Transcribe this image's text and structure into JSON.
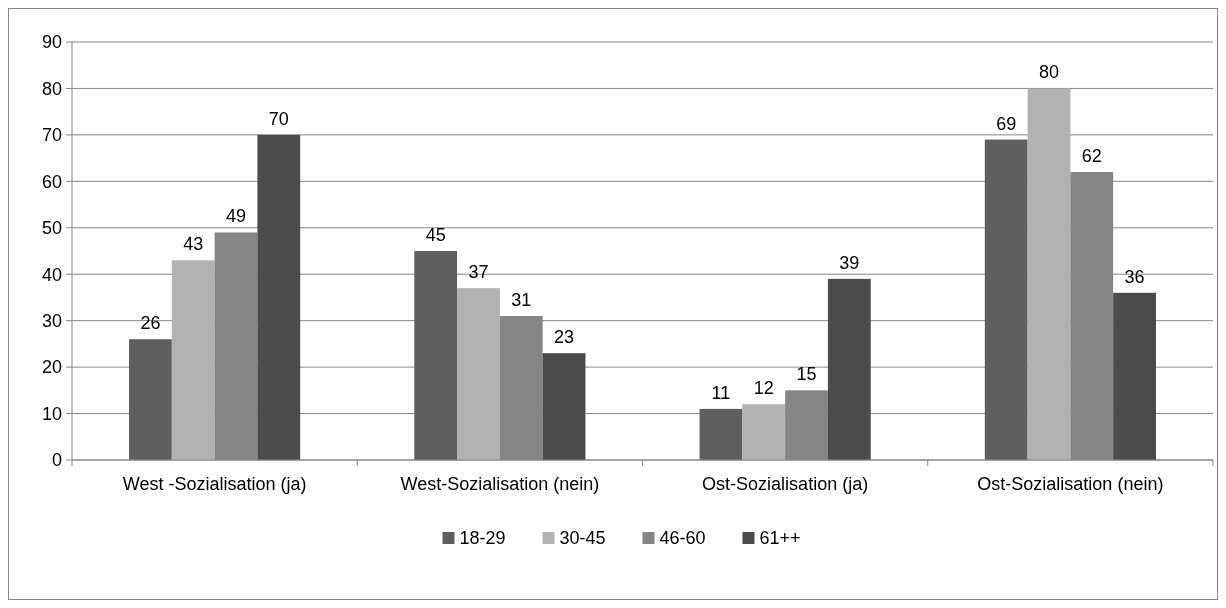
{
  "chart_data": {
    "type": "bar",
    "categories": [
      "West -Sozialisation (ja)",
      "West-Sozialisation (nein)",
      "Ost-Sozialisation (ja)",
      "Ost-Sozialisation (nein)"
    ],
    "series": [
      {
        "name": "18-29",
        "color": "#5f5f5f",
        "values": [
          26,
          45,
          11,
          69
        ]
      },
      {
        "name": "30-45",
        "color": "#b2b2b2",
        "values": [
          43,
          37,
          12,
          80
        ]
      },
      {
        "name": "46-60",
        "color": "#858585",
        "values": [
          49,
          31,
          15,
          62
        ]
      },
      {
        "name": "61++",
        "color": "#4b4b4b",
        "values": [
          70,
          23,
          39,
          36
        ]
      }
    ],
    "ylim": [
      0,
      90
    ],
    "yticks": [
      0,
      10,
      20,
      30,
      40,
      50,
      60,
      70,
      80,
      90
    ],
    "grid": "y",
    "legend": "bottom",
    "data_labels": true
  }
}
